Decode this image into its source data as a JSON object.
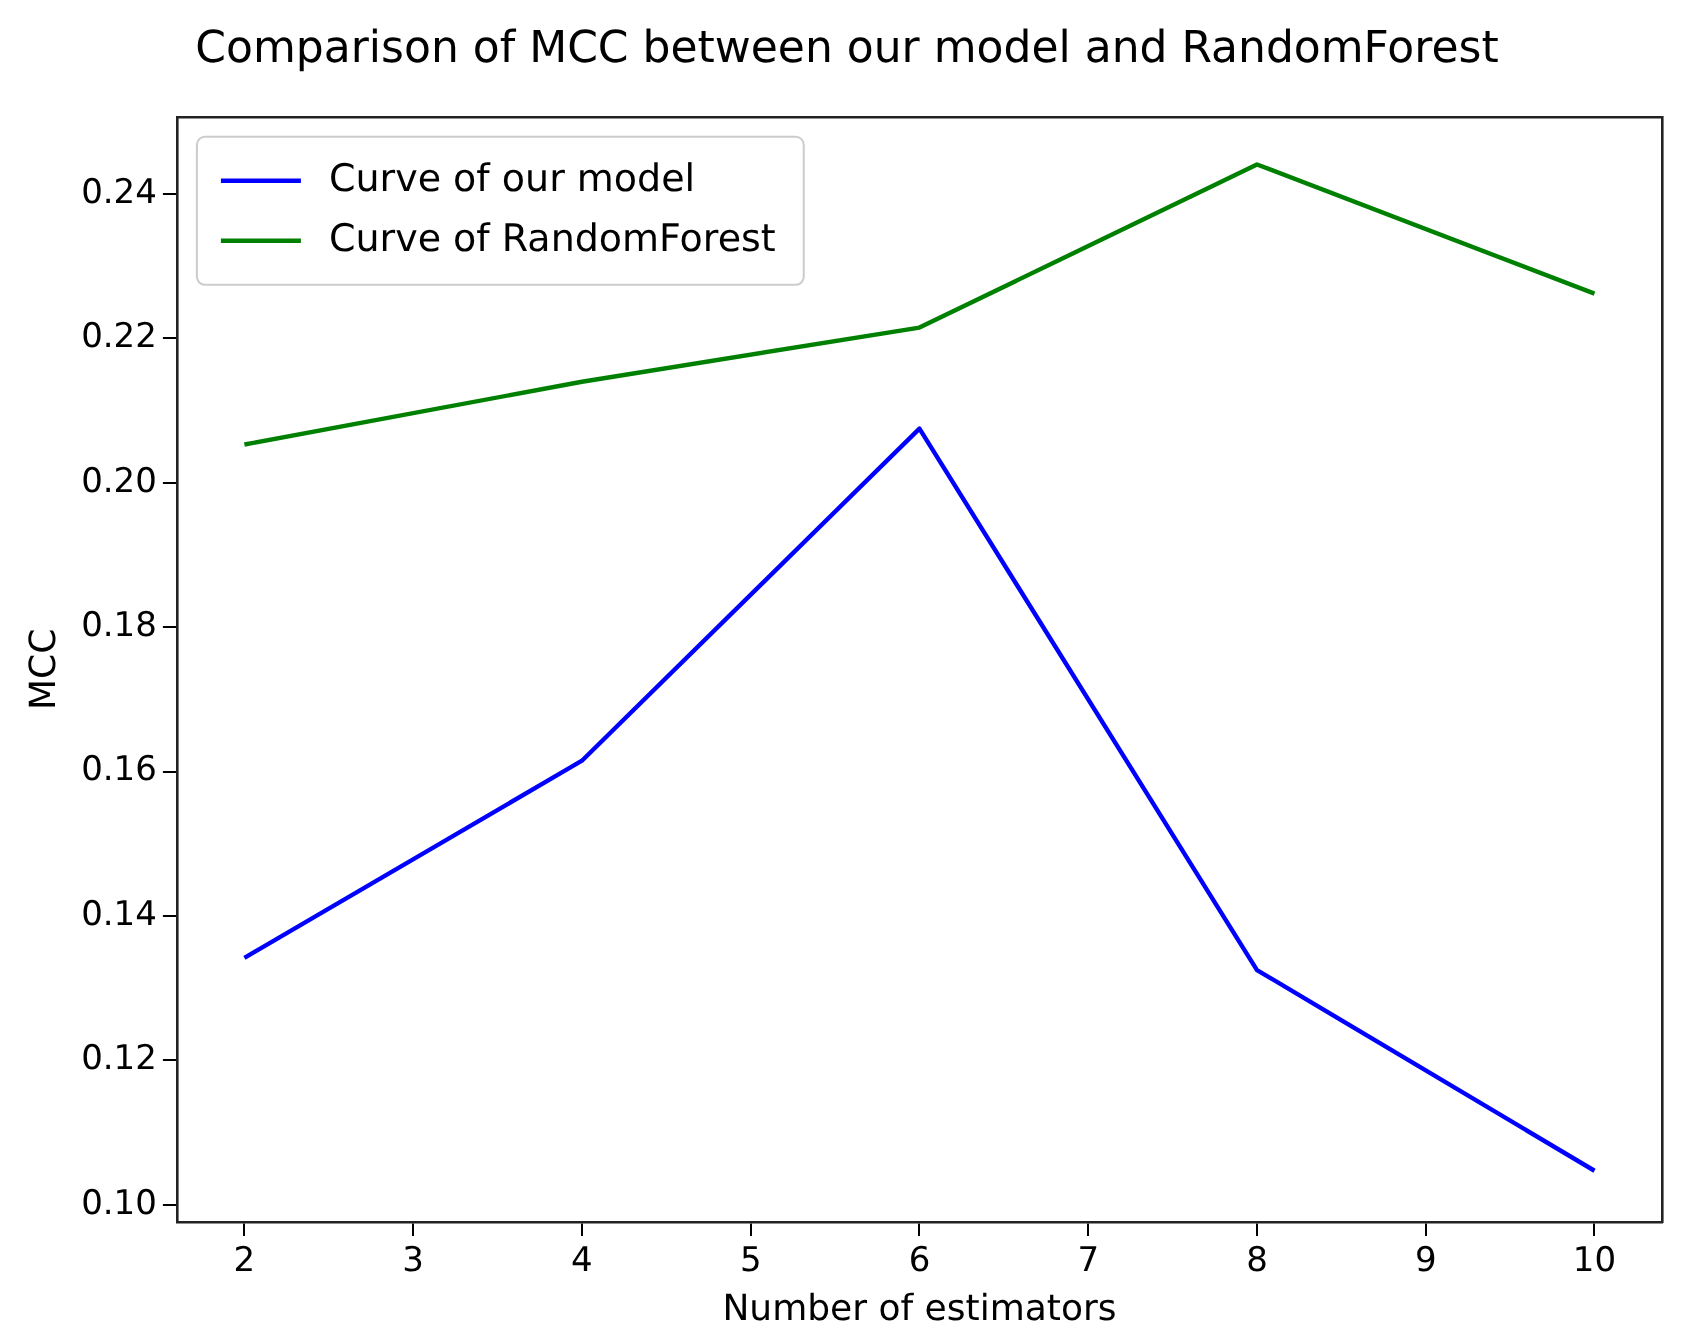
{
  "chart_data": {
    "type": "line",
    "title": "Comparison of MCC between our model and RandomForest",
    "xlabel": "Number of estimators",
    "ylabel": "MCC",
    "x": [
      2,
      4,
      6,
      8,
      10
    ],
    "series": [
      {
        "name": "Curve of our model",
        "color": "#0000ff",
        "values": [
          0.1342,
          0.1615,
          0.2075,
          0.1325,
          0.1047
        ]
      },
      {
        "name": "Curve of RandomForest",
        "color": "#008000",
        "values": [
          0.2053,
          0.214,
          0.2215,
          0.2441,
          0.2262
        ]
      }
    ],
    "xlim": [
      1.6,
      10.4
    ],
    "xticks": [
      2,
      3,
      4,
      5,
      6,
      7,
      8,
      9,
      10
    ],
    "ylim": [
      0.0976,
      0.2507
    ],
    "yticks": [
      {
        "value": 0.1,
        "label": "0.10"
      },
      0.12,
      0.14,
      0.16,
      0.18,
      {
        "value": 0.2,
        "label": "0.20"
      },
      0.22,
      0.24
    ],
    "legend": "top left",
    "grid": false,
    "marker": "none",
    "line_style": "solid"
  }
}
